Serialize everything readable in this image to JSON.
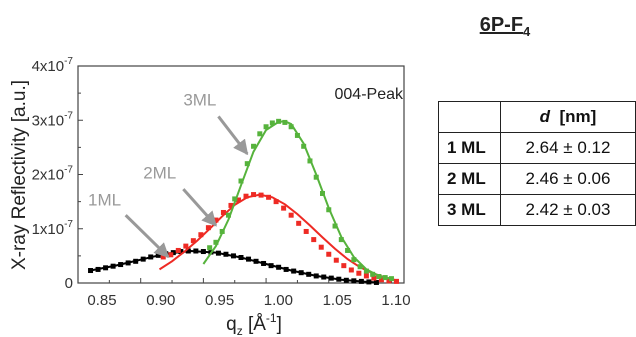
{
  "figure_title": {
    "main": "6P-F",
    "sub": "4"
  },
  "table": {
    "header_var": "d",
    "header_unit": "[nm]",
    "rows": [
      {
        "label": "1 ML",
        "value": "2.64 ± 0.12"
      },
      {
        "label": "2 ML",
        "value": "2.46 ± 0.06"
      },
      {
        "label": "3 ML",
        "value": "2.42 ± 0.03"
      }
    ]
  },
  "chart_data": {
    "type": "scatter",
    "xlabel": {
      "base": "q",
      "sub": "z",
      "unit_open": " [Å",
      "unit_sup": "-1",
      "unit_close": "]"
    },
    "ylabel": "X-ray Reflectivity [a.u.]",
    "xlim": [
      0.85,
      1.11
    ],
    "ylim": [
      0,
      4e-07
    ],
    "xticks": [
      "0.85",
      "0.90",
      "0.95",
      "1.00",
      "1.05",
      "1.10"
    ],
    "yticks": [
      {
        "base": "0",
        "exp": ""
      },
      {
        "base": "1x10",
        "exp": "-7"
      },
      {
        "base": "2x10",
        "exp": "-7"
      },
      {
        "base": "3x10",
        "exp": "-7"
      },
      {
        "base": "4x10",
        "exp": "-7"
      }
    ],
    "annotations": {
      "corner_label": "004-Peak"
    },
    "series": [
      {
        "name": "1ML",
        "color": "#000000",
        "marker": "square",
        "x": [
          0.86,
          0.866,
          0.872,
          0.878,
          0.884,
          0.89,
          0.896,
          0.902,
          0.908,
          0.914,
          0.92,
          0.926,
          0.932,
          0.938,
          0.944,
          0.95,
          0.956,
          0.962,
          0.968,
          0.974,
          0.98,
          0.986,
          0.992,
          0.998,
          1.004,
          1.01,
          1.016,
          1.022,
          1.028,
          1.034,
          1.04,
          1.046,
          1.052,
          1.058,
          1.064,
          1.07,
          1.076,
          1.082,
          1.088
        ],
        "y": [
          2.3e-08,
          2.5e-08,
          2.8e-08,
          3.1e-08,
          3.4e-08,
          3.7e-08,
          4e-08,
          4.4e-08,
          4.8e-08,
          5.1e-08,
          5.4e-08,
          5.6e-08,
          5.8e-08,
          5.9e-08,
          5.9e-08,
          5.8e-08,
          5.7e-08,
          5.5e-08,
          5.3e-08,
          5e-08,
          4.7e-08,
          4.4e-08,
          4e-08,
          3.6e-08,
          3.2e-08,
          2.9e-08,
          2.5e-08,
          2.2e-08,
          1.9e-08,
          1.6e-08,
          1.3e-08,
          1.1e-08,
          9e-09,
          7e-09,
          5e-09,
          4e-09,
          3e-09,
          2e-09,
          1e-09
        ],
        "fit_x": [
          0.86,
          0.88,
          0.9,
          0.92,
          0.94,
          0.96,
          0.98,
          1.0,
          1.02,
          1.04,
          1.06,
          1.08,
          1.09
        ],
        "fit_y": [
          2.3e-08,
          3.2e-08,
          4.3e-08,
          5.4e-08,
          5.9e-08,
          5.6e-08,
          4.7e-08,
          3.5e-08,
          2.3e-08,
          1.3e-08,
          6e-09,
          2e-09,
          1e-09
        ]
      },
      {
        "name": "2ML",
        "color": "#ee2a24",
        "marker": "square",
        "x": [
          0.918,
          0.924,
          0.93,
          0.936,
          0.942,
          0.948,
          0.954,
          0.96,
          0.966,
          0.972,
          0.978,
          0.984,
          0.99,
          0.996,
          1.002,
          1.008,
          1.014,
          1.02,
          1.026,
          1.032,
          1.038,
          1.044,
          1.05,
          1.056,
          1.062,
          1.068,
          1.074,
          1.08,
          1.086,
          1.092,
          1.098,
          1.104
        ],
        "y": [
          4.8e-08,
          5.2e-08,
          6e-08,
          6.8e-08,
          7.8e-08,
          8.9e-08,
          1.02e-07,
          1.16e-07,
          1.3e-07,
          1.43e-07,
          1.53e-07,
          1.6e-07,
          1.63e-07,
          1.62e-07,
          1.58e-07,
          1.5e-07,
          1.38e-07,
          1.25e-07,
          1.1e-07,
          9.5e-08,
          8e-08,
          6.6e-08,
          5.3e-08,
          4.2e-08,
          3.2e-08,
          2.4e-08,
          1.8e-08,
          1.3e-08,
          9e-09,
          6e-09,
          4e-09,
          3e-09
        ],
        "fit_x": [
          0.915,
          0.925,
          0.935,
          0.945,
          0.955,
          0.965,
          0.975,
          0.985,
          0.995,
          1.005,
          1.015,
          1.025,
          1.035,
          1.045,
          1.055,
          1.065,
          1.075,
          1.085,
          1.095,
          1.104
        ],
        "fit_y": [
          2.5e-08,
          4e-08,
          5.8e-08,
          7.8e-08,
          1e-07,
          1.23e-07,
          1.44e-07,
          1.58e-07,
          1.63e-07,
          1.58e-07,
          1.45e-07,
          1.27e-07,
          1.06e-07,
          8.4e-08,
          6.3e-08,
          4.4e-08,
          2.9e-08,
          1.8e-08,
          1e-08,
          5e-09
        ]
      },
      {
        "name": "3ML",
        "color": "#56b33c",
        "marker": "square",
        "x": [
          0.955,
          0.96,
          0.965,
          0.97,
          0.975,
          0.98,
          0.985,
          0.99,
          0.995,
          1.0,
          1.005,
          1.01,
          1.015,
          1.02,
          1.025,
          1.03,
          1.035,
          1.04,
          1.045,
          1.05,
          1.055,
          1.06,
          1.065,
          1.07,
          1.075,
          1.08,
          1.085,
          1.09,
          1.095,
          1.1
        ],
        "y": [
          6.5e-08,
          7.5e-08,
          9.5e-08,
          1.25e-07,
          1.55e-07,
          1.88e-07,
          2.2e-07,
          2.52e-07,
          2.75e-07,
          2.88e-07,
          2.95e-07,
          2.98e-07,
          2.96e-07,
          2.88e-07,
          2.72e-07,
          2.52e-07,
          2.25e-07,
          1.95e-07,
          1.65e-07,
          1.35e-07,
          1.05e-07,
          8e-08,
          6e-08,
          4.3e-08,
          3e-08,
          2.2e-08,
          1.6e-08,
          1.2e-08,
          1e-08,
          8e-09
        ],
        "fit_x": [
          0.95,
          0.96,
          0.97,
          0.98,
          0.99,
          1.0,
          1.01,
          1.015,
          1.02,
          1.03,
          1.04,
          1.05,
          1.06,
          1.07,
          1.08,
          1.09,
          1.1
        ],
        "fit_y": [
          3.5e-08,
          6.8e-08,
          1.17e-07,
          1.8e-07,
          2.42e-07,
          2.82e-07,
          2.97e-07,
          2.98e-07,
          2.93e-07,
          2.57e-07,
          2e-07,
          1.38e-07,
          8.5e-08,
          4.8e-08,
          2.5e-08,
          1.3e-08,
          8e-09
        ]
      }
    ],
    "callouts": [
      {
        "text": "1ML",
        "color": "#999999",
        "tip": [
          0.922,
          4.8e-08
        ],
        "tail": [
          0.888,
          1.25e-07
        ],
        "label_at": [
          0.858,
          1.43e-07
        ]
      },
      {
        "text": "2ML",
        "color": "#999999",
        "tip": [
          0.96,
          1.06e-07
        ],
        "tail": [
          0.934,
          1.73e-07
        ],
        "label_at": [
          0.902,
          1.93e-07
        ]
      },
      {
        "text": "3ML",
        "color": "#999999",
        "tip": [
          0.985,
          2.38e-07
        ],
        "tail": [
          0.962,
          3.07e-07
        ],
        "label_at": [
          0.934,
          3.27e-07
        ]
      }
    ]
  }
}
